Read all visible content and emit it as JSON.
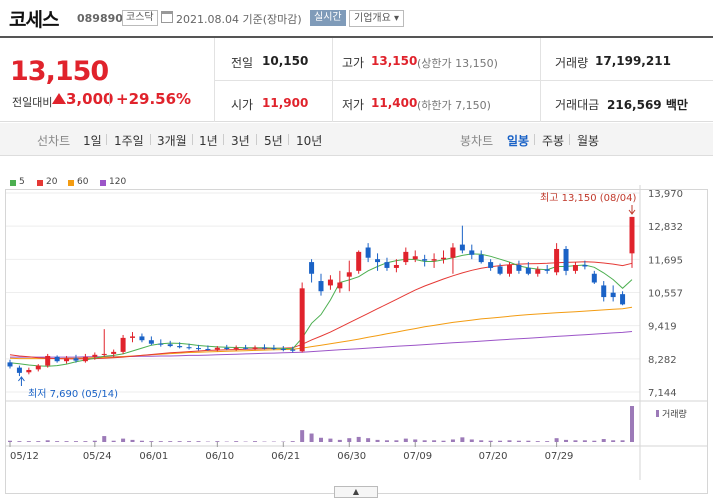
{
  "header": {
    "name": "코세스",
    "code": "089890",
    "market": "코스닥",
    "date": "2021.08.04 기준(장마감)",
    "realtime": "실시간",
    "company": "기업개요 ▾"
  },
  "summary": {
    "price": "13,150",
    "diff_label": "전일대비",
    "diff": "3,000",
    "rate": "+29.56%",
    "prev_label": "전일",
    "prev": "10,150",
    "high_label": "고가",
    "high": "13,150",
    "high_sub": "(상한가 13,150)",
    "volume_label": "거래량",
    "volume": "17,199,211",
    "open_label": "시가",
    "open": "11,900",
    "low_label": "저가",
    "low": "11,400",
    "low_sub": "(하한가 7,150)",
    "amount_label": "거래대금",
    "amount": "216,569 백만"
  },
  "tabs": {
    "line_label": "선차트",
    "periods": [
      "1일",
      "1주일",
      "3개월",
      "1년",
      "3년",
      "5년",
      "10년"
    ],
    "candle_label": "봉차트",
    "candles": [
      "일봉",
      "주봉",
      "월봉"
    ],
    "selected_candle": "일봉"
  },
  "legend": [
    {
      "label": "5",
      "color": "#4caf50"
    },
    {
      "label": "20",
      "color": "#e53935"
    },
    {
      "label": "60",
      "color": "#f39c12"
    },
    {
      "label": "120",
      "color": "#9c55c8"
    }
  ],
  "chart_data": {
    "type": "candlestick",
    "y_ticks": [
      "13,970",
      "12,832",
      "11,695",
      "10,557",
      "9,419",
      "8,282",
      "7,144"
    ],
    "ylim": [
      7144,
      13970
    ],
    "x_ticks": [
      "05/12",
      "05/24",
      "06/01",
      "06/10",
      "06/21",
      "06/30",
      "07/09",
      "07/20",
      "07/29"
    ],
    "max_annotation": "최고 13,150 (08/04)",
    "min_annotation": "최저 7,690 (05/14)",
    "volume_label": "거래량",
    "up_color": "#e0232c",
    "down_color": "#1a62c6",
    "candles": [
      {
        "o": 8160,
        "h": 8250,
        "l": 7950,
        "c": 8020
      },
      {
        "o": 7980,
        "h": 8050,
        "l": 7690,
        "c": 7800
      },
      {
        "o": 7820,
        "h": 7980,
        "l": 7750,
        "c": 7900
      },
      {
        "o": 7920,
        "h": 8100,
        "l": 7850,
        "c": 8050
      },
      {
        "o": 8050,
        "h": 8450,
        "l": 7980,
        "c": 8380
      },
      {
        "o": 8350,
        "h": 8400,
        "l": 8150,
        "c": 8200
      },
      {
        "o": 8200,
        "h": 8380,
        "l": 8120,
        "c": 8300
      },
      {
        "o": 8300,
        "h": 8420,
        "l": 8150,
        "c": 8220
      },
      {
        "o": 8200,
        "h": 8450,
        "l": 8150,
        "c": 8350
      },
      {
        "o": 8350,
        "h": 8500,
        "l": 8250,
        "c": 8420
      },
      {
        "o": 8420,
        "h": 9300,
        "l": 8350,
        "c": 8450
      },
      {
        "o": 8450,
        "h": 8600,
        "l": 8350,
        "c": 8520
      },
      {
        "o": 8520,
        "h": 9100,
        "l": 8450,
        "c": 9000
      },
      {
        "o": 9000,
        "h": 9200,
        "l": 8850,
        "c": 9050
      },
      {
        "o": 9050,
        "h": 9150,
        "l": 8850,
        "c": 8920
      },
      {
        "o": 8920,
        "h": 9050,
        "l": 8750,
        "c": 8800
      },
      {
        "o": 8800,
        "h": 8950,
        "l": 8700,
        "c": 8780
      },
      {
        "o": 8780,
        "h": 8900,
        "l": 8680,
        "c": 8720
      },
      {
        "o": 8720,
        "h": 8850,
        "l": 8640,
        "c": 8680
      },
      {
        "o": 8680,
        "h": 8800,
        "l": 8600,
        "c": 8650
      },
      {
        "o": 8650,
        "h": 8760,
        "l": 8570,
        "c": 8620
      },
      {
        "o": 8620,
        "h": 8740,
        "l": 8560,
        "c": 8600
      },
      {
        "o": 8600,
        "h": 8720,
        "l": 8540,
        "c": 8660
      },
      {
        "o": 8660,
        "h": 8760,
        "l": 8580,
        "c": 8620
      },
      {
        "o": 8620,
        "h": 8740,
        "l": 8560,
        "c": 8660
      },
      {
        "o": 8660,
        "h": 8760,
        "l": 8600,
        "c": 8640
      },
      {
        "o": 8640,
        "h": 8740,
        "l": 8580,
        "c": 8670
      },
      {
        "o": 8670,
        "h": 8780,
        "l": 8600,
        "c": 8650
      },
      {
        "o": 8650,
        "h": 8760,
        "l": 8580,
        "c": 8620
      },
      {
        "o": 8620,
        "h": 8720,
        "l": 8540,
        "c": 8600
      },
      {
        "o": 8600,
        "h": 8700,
        "l": 8500,
        "c": 8560
      },
      {
        "o": 8540,
        "h": 10900,
        "l": 8500,
        "c": 10700
      },
      {
        "o": 11600,
        "h": 11700,
        "l": 10900,
        "c": 11200
      },
      {
        "o": 10950,
        "h": 11200,
        "l": 10450,
        "c": 10600
      },
      {
        "o": 10800,
        "h": 11150,
        "l": 10650,
        "c": 11000
      },
      {
        "o": 10700,
        "h": 11300,
        "l": 10550,
        "c": 10900
      },
      {
        "o": 11100,
        "h": 11650,
        "l": 10600,
        "c": 11250
      },
      {
        "o": 11300,
        "h": 12000,
        "l": 11200,
        "c": 11950
      },
      {
        "o": 12100,
        "h": 12250,
        "l": 11600,
        "c": 11750
      },
      {
        "o": 11700,
        "h": 11900,
        "l": 11300,
        "c": 11600
      },
      {
        "o": 11600,
        "h": 11750,
        "l": 11300,
        "c": 11400
      },
      {
        "o": 11400,
        "h": 11700,
        "l": 11250,
        "c": 11500
      },
      {
        "o": 11600,
        "h": 12100,
        "l": 11500,
        "c": 11950
      },
      {
        "o": 11700,
        "h": 12000,
        "l": 11600,
        "c": 11800
      },
      {
        "o": 11700,
        "h": 11850,
        "l": 11450,
        "c": 11650
      },
      {
        "o": 11650,
        "h": 11900,
        "l": 11400,
        "c": 11700
      },
      {
        "o": 11700,
        "h": 12000,
        "l": 11550,
        "c": 11750
      },
      {
        "o": 11750,
        "h": 12250,
        "l": 11200,
        "c": 12100
      },
      {
        "o": 12200,
        "h": 12850,
        "l": 11900,
        "c": 12000
      },
      {
        "o": 12000,
        "h": 12200,
        "l": 11700,
        "c": 11850
      },
      {
        "o": 11850,
        "h": 12000,
        "l": 11550,
        "c": 11600
      },
      {
        "o": 11600,
        "h": 11700,
        "l": 11300,
        "c": 11400
      },
      {
        "o": 11450,
        "h": 11550,
        "l": 11150,
        "c": 11200
      },
      {
        "o": 11200,
        "h": 11600,
        "l": 11100,
        "c": 11500
      },
      {
        "o": 11500,
        "h": 11650,
        "l": 11200,
        "c": 11300
      },
      {
        "o": 11400,
        "h": 11600,
        "l": 11150,
        "c": 11200
      },
      {
        "o": 11200,
        "h": 11450,
        "l": 11100,
        "c": 11350
      },
      {
        "o": 11350,
        "h": 11500,
        "l": 11200,
        "c": 11300
      },
      {
        "o": 11250,
        "h": 12250,
        "l": 11150,
        "c": 12050
      },
      {
        "o": 12050,
        "h": 12150,
        "l": 11150,
        "c": 11300
      },
      {
        "o": 11300,
        "h": 11600,
        "l": 11200,
        "c": 11500
      },
      {
        "o": 11500,
        "h": 11650,
        "l": 11350,
        "c": 11450
      },
      {
        "o": 11200,
        "h": 11300,
        "l": 10850,
        "c": 10900
      },
      {
        "o": 10800,
        "h": 10950,
        "l": 10250,
        "c": 10400
      },
      {
        "o": 10550,
        "h": 10800,
        "l": 10250,
        "c": 10400
      },
      {
        "o": 10500,
        "h": 10600,
        "l": 10120,
        "c": 10150
      },
      {
        "o": 11900,
        "h": 13150,
        "l": 11400,
        "c": 13150
      }
    ],
    "volumes": [
      3,
      2,
      2,
      2,
      4,
      2,
      2,
      2,
      2,
      3,
      14,
      3,
      8,
      5,
      3,
      2,
      2,
      2,
      2,
      2,
      2,
      1,
      2,
      1,
      2,
      1,
      2,
      1,
      1,
      1,
      2,
      28,
      20,
      10,
      8,
      5,
      9,
      12,
      9,
      5,
      4,
      4,
      8,
      6,
      4,
      4,
      3,
      6,
      11,
      6,
      4,
      3,
      3,
      4,
      3,
      3,
      2,
      2,
      9,
      5,
      4,
      4,
      3,
      7,
      4,
      4,
      85
    ],
    "ma5": [
      8150,
      8110,
      8070,
      8040,
      8030,
      8050,
      8100,
      8180,
      8240,
      8300,
      8370,
      8400,
      8450,
      8550,
      8650,
      8750,
      8800,
      8820,
      8810,
      8780,
      8740,
      8710,
      8690,
      8680,
      8670,
      8660,
      8660,
      8660,
      8650,
      8640,
      8630,
      9000,
      9500,
      9800,
      10300,
      10900,
      10990,
      11100,
      11300,
      11450,
      11580,
      11650,
      11700,
      11690,
      11620,
      11620,
      11680,
      11750,
      11830,
      11880,
      11870,
      11800,
      11700,
      11600,
      11470,
      11400,
      11360,
      11340,
      11450,
      11450,
      11480,
      11500,
      11420,
      11230,
      11000,
      10700,
      11000
    ],
    "ma20": [
      8420,
      8380,
      8350,
      8320,
      8300,
      8290,
      8280,
      8280,
      8280,
      8290,
      8300,
      8320,
      8340,
      8370,
      8400,
      8430,
      8460,
      8490,
      8510,
      8530,
      8550,
      8570,
      8580,
      8590,
      8600,
      8610,
      8620,
      8630,
      8640,
      8650,
      8660,
      8780,
      8930,
      9060,
      9200,
      9360,
      9520,
      9680,
      9840,
      10000,
      10160,
      10320,
      10480,
      10640,
      10780,
      10900,
      11020,
      11130,
      11230,
      11320,
      11390,
      11440,
      11480,
      11510,
      11530,
      11540,
      11550,
      11560,
      11580,
      11590,
      11600,
      11610,
      11600,
      11570,
      11530,
      11480,
      11560
    ],
    "ma60": [
      8300,
      8290,
      8290,
      8290,
      8290,
      8290,
      8300,
      8300,
      8310,
      8320,
      8330,
      8340,
      8360,
      8380,
      8400,
      8420,
      8440,
      8460,
      8480,
      8500,
      8510,
      8520,
      8530,
      8540,
      8550,
      8560,
      8570,
      8580,
      8590,
      8600,
      8610,
      8650,
      8700,
      8750,
      8800,
      8850,
      8900,
      8960,
      9020,
      9080,
      9140,
      9200,
      9260,
      9320,
      9380,
      9430,
      9480,
      9530,
      9570,
      9610,
      9650,
      9680,
      9710,
      9740,
      9770,
      9800,
      9820,
      9840,
      9860,
      9880,
      9900,
      9920,
      9940,
      9960,
      9980,
      10000,
      10050
    ],
    "ma120": [
      8340,
      8340,
      8340,
      8340,
      8340,
      8340,
      8340,
      8340,
      8350,
      8350,
      8350,
      8350,
      8360,
      8360,
      8370,
      8370,
      8380,
      8380,
      8390,
      8400,
      8400,
      8410,
      8420,
      8430,
      8440,
      8450,
      8460,
      8470,
      8480,
      8490,
      8500,
      8510,
      8530,
      8550,
      8570,
      8590,
      8610,
      8630,
      8650,
      8670,
      8690,
      8710,
      8730,
      8750,
      8770,
      8790,
      8810,
      8830,
      8850,
      8870,
      8890,
      8910,
      8930,
      8950,
      8970,
      8990,
      9010,
      9030,
      9050,
      9070,
      9090,
      9110,
      9130,
      9150,
      9170,
      9190,
      9220
    ]
  },
  "scroll_label": "▲"
}
